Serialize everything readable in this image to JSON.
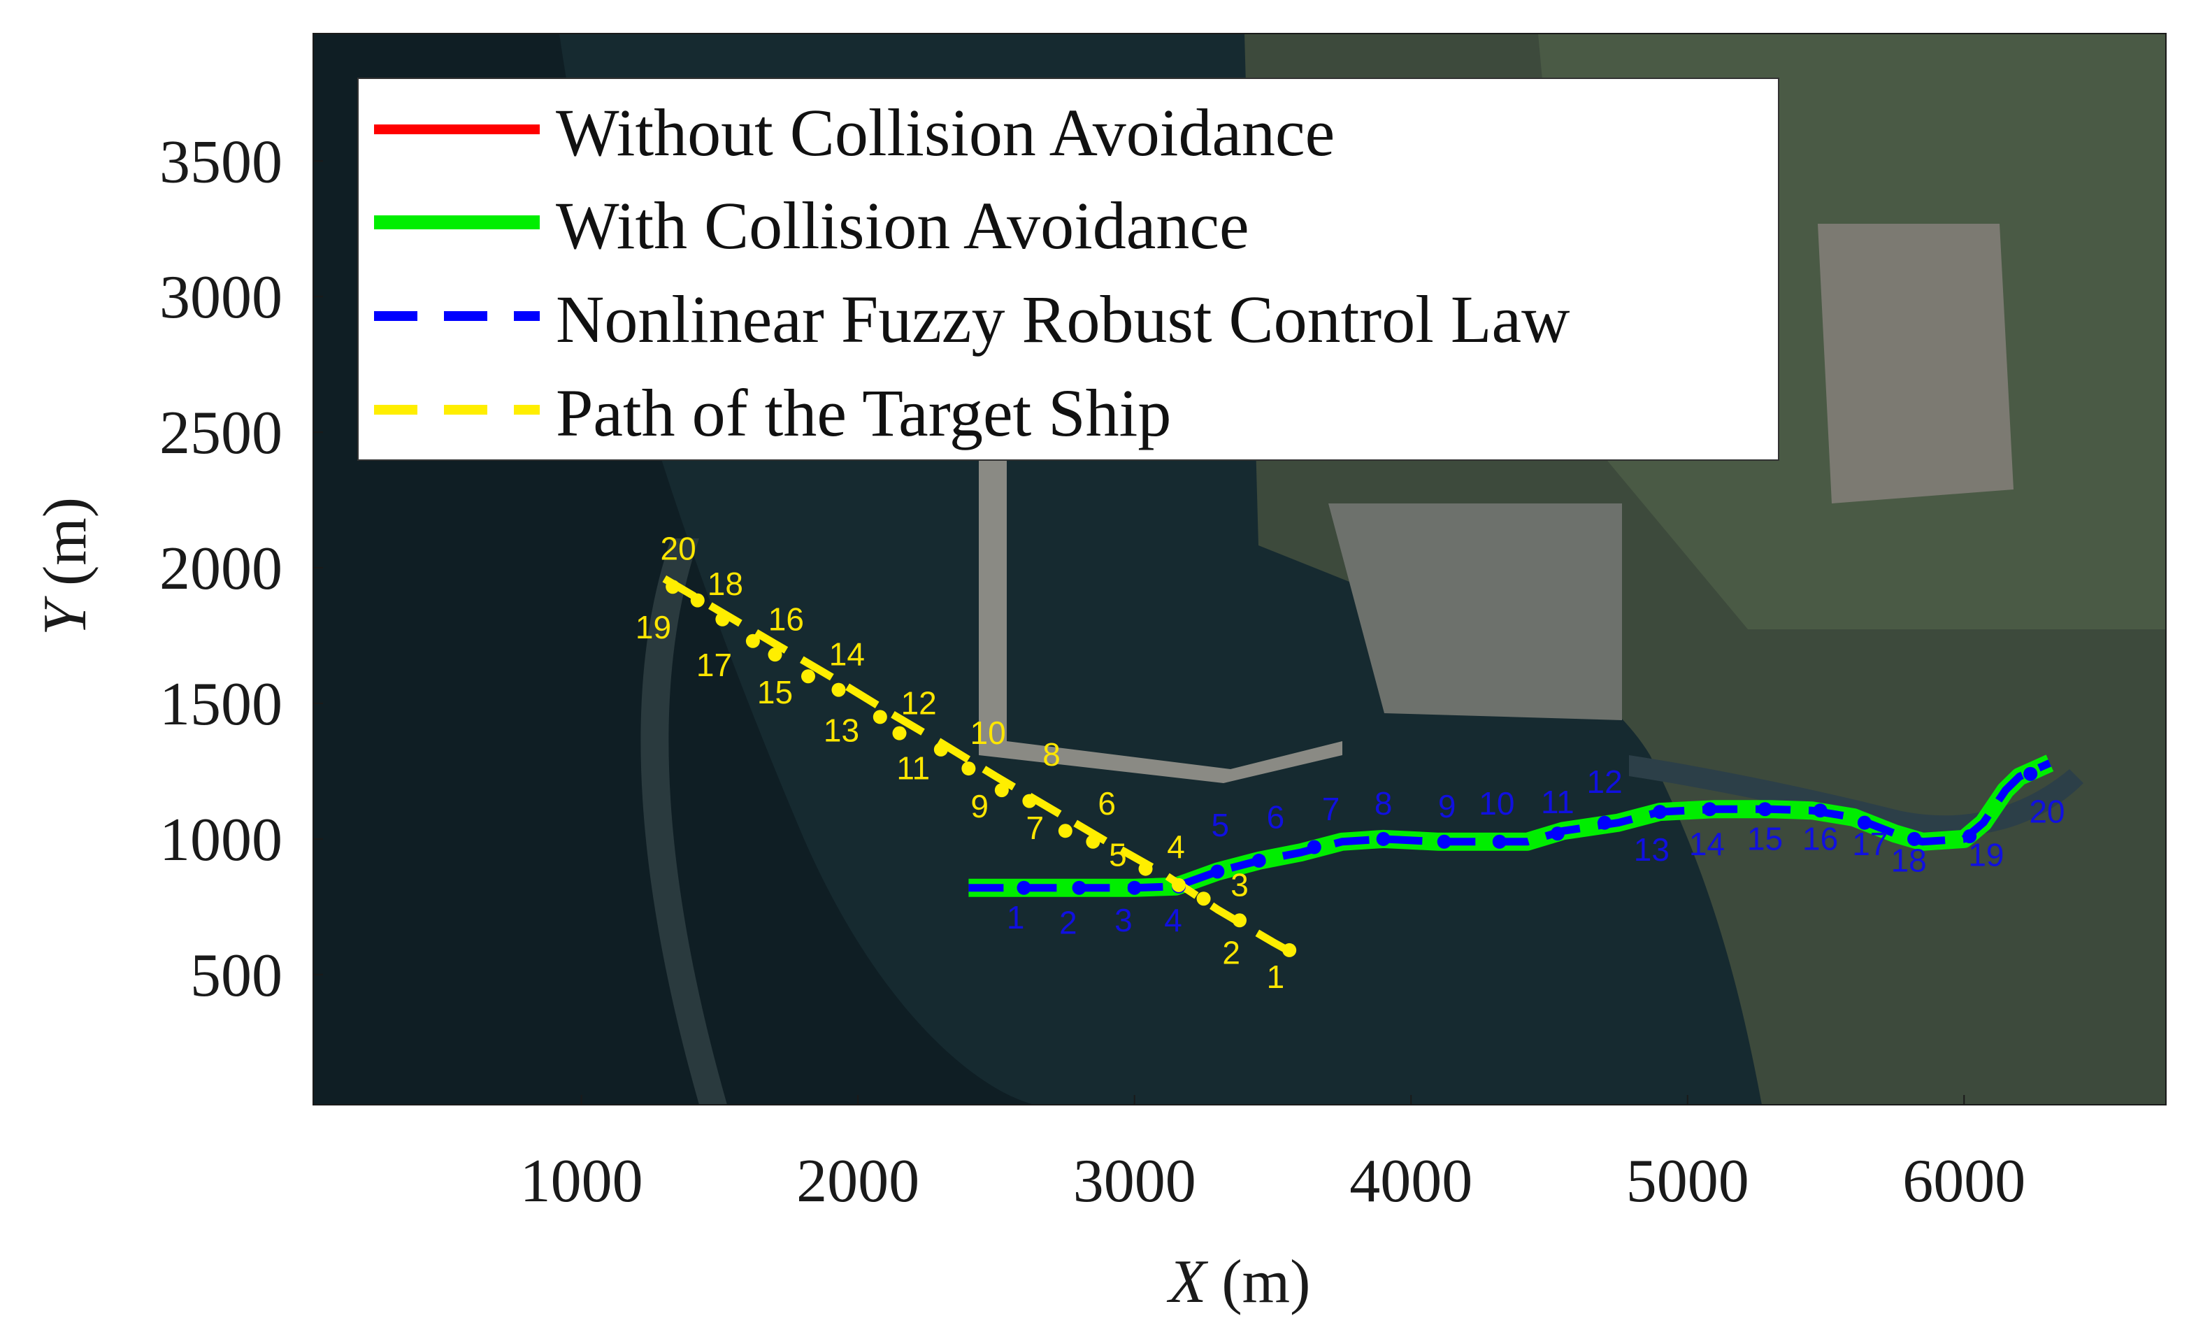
{
  "chart_data": {
    "type": "line",
    "title": "",
    "xlabel_var": "X",
    "xlabel_unit": "(m)",
    "ylabel_var": "Y",
    "ylabel_unit": "(m)",
    "xlim": [
      30,
      6730
    ],
    "ylim": [
      20,
      3970
    ],
    "xticks": [
      1000,
      2000,
      3000,
      4000,
      5000,
      6000
    ],
    "yticks": [
      500,
      1000,
      1500,
      2000,
      2500,
      3000,
      3500
    ],
    "xtick_labels": [
      "1000",
      "2000",
      "3000",
      "4000",
      "5000",
      "6000"
    ],
    "ytick_labels": [
      "500",
      "1000",
      "1500",
      "2000",
      "2500",
      "3000",
      "3500"
    ],
    "grid": false,
    "background": "satellite-image",
    "legend_position": "top-left",
    "legend": [
      {
        "label": "Without Collision Avoidance",
        "color": "#ff0000",
        "style": "solid"
      },
      {
        "label": "With Collision Avoidance",
        "color": "#00ee00",
        "style": "solid"
      },
      {
        "label": "Nonlinear Fuzzy Robust Control Law",
        "color": "#0000ff",
        "style": "dashed"
      },
      {
        "label": "Path of the Target Ship",
        "color": "#ffee00",
        "style": "dashed"
      }
    ],
    "series": [
      {
        "name": "With Collision Avoidance",
        "color": "#00ee00",
        "style": "solid",
        "x": [
          2400,
          2600,
          2800,
          3000,
          3150,
          3300,
          3450,
          3600,
          3750,
          3900,
          4100,
          4300,
          4420,
          4550,
          4750,
          4900,
          5100,
          5300,
          5450,
          5600,
          5750,
          5850,
          6000,
          6070,
          6150,
          6200,
          6310
        ],
        "y": [
          820,
          820,
          820,
          820,
          825,
          880,
          920,
          950,
          990,
          1000,
          990,
          990,
          990,
          1030,
          1060,
          1100,
          1110,
          1110,
          1105,
          1080,
          1020,
          990,
          1000,
          1060,
          1180,
          1230,
          1280
        ]
      },
      {
        "name": "Nonlinear Fuzzy Robust Control Law",
        "color": "#0000ff",
        "style": "dashed",
        "x": [
          2400,
          2600,
          2800,
          3000,
          3150,
          3300,
          3450,
          3600,
          3750,
          3900,
          4100,
          4300,
          4420,
          4550,
          4750,
          4900,
          5100,
          5300,
          5450,
          5600,
          5750,
          5850,
          6000,
          6070,
          6150,
          6200,
          6310
        ],
        "y": [
          820,
          820,
          820,
          820,
          825,
          880,
          920,
          950,
          990,
          1000,
          990,
          990,
          990,
          1030,
          1060,
          1100,
          1110,
          1110,
          1105,
          1080,
          1020,
          990,
          1000,
          1060,
          1180,
          1230,
          1280
        ]
      },
      {
        "name": "Path of the Target Ship",
        "color": "#ffee00",
        "style": "dashed",
        "x": [
          1300,
          1500,
          1700,
          1900,
          2100,
          2300,
          2500,
          2700,
          2900,
          3100,
          3300,
          3500,
          3580
        ],
        "y": [
          1960,
          1840,
          1720,
          1600,
          1475,
          1355,
          1230,
          1110,
          990,
          875,
          740,
          620,
          575
        ]
      }
    ],
    "own_ship_markers": [
      {
        "label": "1",
        "x": 2600,
        "y": 820,
        "lx": 2570,
        "ly": 670
      },
      {
        "label": "2",
        "x": 2800,
        "y": 820,
        "lx": 2760,
        "ly": 650
      },
      {
        "label": "3",
        "x": 3000,
        "y": 820,
        "lx": 2960,
        "ly": 660
      },
      {
        "label": "4",
        "x": 3160,
        "y": 825,
        "lx": 3140,
        "ly": 660
      },
      {
        "label": "5",
        "x": 3300,
        "y": 880,
        "lx": 3310,
        "ly": 1010
      },
      {
        "label": "6",
        "x": 3450,
        "y": 920,
        "lx": 3510,
        "ly": 1040
      },
      {
        "label": "7",
        "x": 3650,
        "y": 970,
        "lx": 3710,
        "ly": 1070
      },
      {
        "label": "8",
        "x": 3900,
        "y": 1000,
        "lx": 3900,
        "ly": 1090
      },
      {
        "label": "9",
        "x": 4120,
        "y": 990,
        "lx": 4130,
        "ly": 1080
      },
      {
        "label": "10",
        "x": 4320,
        "y": 990,
        "lx": 4310,
        "ly": 1090
      },
      {
        "label": "11",
        "x": 4530,
        "y": 1020,
        "lx": 4530,
        "ly": 1095
      },
      {
        "label": "12",
        "x": 4700,
        "y": 1060,
        "lx": 4700,
        "ly": 1170
      },
      {
        "label": "13",
        "x": 4900,
        "y": 1100,
        "lx": 4870,
        "ly": 920
      },
      {
        "label": "14",
        "x": 5080,
        "y": 1110,
        "lx": 5070,
        "ly": 940
      },
      {
        "label": "15",
        "x": 5280,
        "y": 1110,
        "lx": 5280,
        "ly": 960
      },
      {
        "label": "16",
        "x": 5480,
        "y": 1105,
        "lx": 5480,
        "ly": 960
      },
      {
        "label": "17",
        "x": 5640,
        "y": 1060,
        "lx": 5660,
        "ly": 940
      },
      {
        "label": "18",
        "x": 5820,
        "y": 1000,
        "lx": 5800,
        "ly": 880
      },
      {
        "label": "19",
        "x": 6020,
        "y": 1010,
        "lx": 6080,
        "ly": 900
      },
      {
        "label": "20",
        "x": 6240,
        "y": 1240,
        "lx": 6300,
        "ly": 1060
      }
    ],
    "target_ship_markers": [
      {
        "label": "1",
        "x": 3560,
        "y": 590,
        "lx": 3510,
        "ly": 450
      },
      {
        "label": "2",
        "x": 3380,
        "y": 700,
        "lx": 3350,
        "ly": 540
      },
      {
        "label": "3",
        "x": 3250,
        "y": 780,
        "lx": 3380,
        "ly": 790
      },
      {
        "label": "4",
        "x": 3160,
        "y": 830,
        "lx": 3150,
        "ly": 930
      },
      {
        "label": "5",
        "x": 3040,
        "y": 890,
        "lx": 2940,
        "ly": 900
      },
      {
        "label": "6",
        "x": 2850,
        "y": 990,
        "lx": 2900,
        "ly": 1090
      },
      {
        "label": "7",
        "x": 2750,
        "y": 1030,
        "lx": 2640,
        "ly": 1000
      },
      {
        "label": "8",
        "x": 2620,
        "y": 1140,
        "lx": 2700,
        "ly": 1270
      },
      {
        "label": "9",
        "x": 2520,
        "y": 1180,
        "lx": 2440,
        "ly": 1080
      },
      {
        "label": "10",
        "x": 2400,
        "y": 1260,
        "lx": 2470,
        "ly": 1350
      },
      {
        "label": "11",
        "x": 2300,
        "y": 1330,
        "lx": 2200,
        "ly": 1220
      },
      {
        "label": "12",
        "x": 2150,
        "y": 1390,
        "lx": 2220,
        "ly": 1460
      },
      {
        "label": "13",
        "x": 2080,
        "y": 1450,
        "lx": 1940,
        "ly": 1360
      },
      {
        "label": "14",
        "x": 1930,
        "y": 1550,
        "lx": 1960,
        "ly": 1640
      },
      {
        "label": "15",
        "x": 1820,
        "y": 1600,
        "lx": 1700,
        "ly": 1500
      },
      {
        "label": "16",
        "x": 1700,
        "y": 1680,
        "lx": 1740,
        "ly": 1770
      },
      {
        "label": "17",
        "x": 1620,
        "y": 1730,
        "lx": 1480,
        "ly": 1600
      },
      {
        "label": "18",
        "x": 1510,
        "y": 1810,
        "lx": 1520,
        "ly": 1900
      },
      {
        "label": "19",
        "x": 1420,
        "y": 1880,
        "lx": 1260,
        "ly": 1740
      },
      {
        "label": "20",
        "x": 1330,
        "y": 1930,
        "lx": 1350,
        "ly": 2030
      }
    ]
  }
}
